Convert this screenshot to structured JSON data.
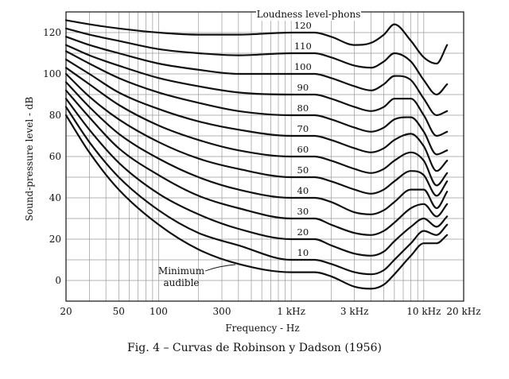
{
  "chart_data": {
    "type": "line",
    "title": "",
    "caption": "Fig. 4 – Curvas de Robinson y Dadson (1956)",
    "xlabel": "Frequency - Hz",
    "ylabel": "Sound-pressure level - dB",
    "x_scale": "log",
    "xlim": [
      20,
      20000
    ],
    "ylim": [
      -10,
      130
    ],
    "grid": true,
    "x_ticks": [
      {
        "value": 20,
        "label": "20"
      },
      {
        "value": 50,
        "label": "50"
      },
      {
        "value": 100,
        "label": "100"
      },
      {
        "value": 300,
        "label": "300"
      },
      {
        "value": 1000,
        "label": "1 kHz"
      },
      {
        "value": 3000,
        "label": "3 kHz"
      },
      {
        "value": 10000,
        "label": "10 kHz"
      },
      {
        "value": 20000,
        "label": "20 kHz"
      }
    ],
    "y_ticks": [
      {
        "value": 0,
        "label": "0"
      },
      {
        "value": 20,
        "label": "20"
      },
      {
        "value": 40,
        "label": "40"
      },
      {
        "value": 60,
        "label": "60"
      },
      {
        "value": 80,
        "label": "80"
      },
      {
        "value": 100,
        "label": "100"
      },
      {
        "value": 120,
        "label": "120"
      }
    ],
    "legend_title": "Loudness level-phons",
    "annotation": "Minimum\naudible",
    "x": [
      20,
      30,
      50,
      100,
      200,
      400,
      1000,
      1500,
      2000,
      3000,
      4000,
      5000,
      6000,
      8000,
      10000,
      12500,
      15000
    ],
    "series": [
      {
        "name": "Minimum audible",
        "values": [
          80,
          62,
          44,
          27,
          15,
          8,
          4,
          4,
          2,
          -3,
          -4,
          -2,
          3,
          12,
          18,
          18,
          22
        ]
      },
      {
        "name": "10",
        "values": [
          84,
          67,
          50,
          34,
          23,
          17,
          10,
          10,
          8,
          4,
          3,
          5,
          10,
          18,
          24,
          22,
          27
        ]
      },
      {
        "name": "20",
        "values": [
          88,
          73,
          57,
          42,
          32,
          25,
          20,
          20,
          17,
          13,
          12,
          14,
          19,
          26,
          30,
          26,
          31
        ]
      },
      {
        "name": "30",
        "values": [
          92,
          79,
          64,
          51,
          41,
          35,
          30,
          30,
          27,
          23,
          22,
          24,
          28,
          35,
          37,
          31,
          37
        ]
      },
      {
        "name": "40",
        "values": [
          96,
          84,
          71,
          59,
          50,
          44,
          40,
          40,
          38,
          33,
          32,
          34,
          38,
          44,
          44,
          35,
          43
        ]
      },
      {
        "name": "50",
        "values": [
          100,
          89,
          78,
          67,
          59,
          54,
          50,
          50,
          48,
          44,
          42,
          44,
          48,
          53,
          51,
          41,
          48
        ]
      },
      {
        "name": "60",
        "values": [
          103,
          95,
          85,
          75,
          68,
          63,
          60,
          60,
          58,
          54,
          52,
          54,
          58,
          62,
          58,
          46,
          52
        ]
      },
      {
        "name": "70",
        "values": [
          107,
          100,
          91,
          83,
          77,
          73,
          70,
          70,
          68,
          64,
          62,
          64,
          68,
          71,
          65,
          53,
          58
        ]
      },
      {
        "name": "80",
        "values": [
          111,
          105,
          98,
          91,
          86,
          82,
          80,
          80,
          78,
          74,
          72,
          74,
          78,
          79,
          72,
          61,
          63
        ]
      },
      {
        "name": "90",
        "values": [
          114,
          109,
          104,
          98,
          94,
          91,
          90,
          90,
          88,
          84,
          82,
          84,
          88,
          88,
          80,
          70,
          72
        ]
      },
      {
        "name": "100",
        "values": [
          118,
          114,
          110,
          105,
          102,
          100,
          100,
          100,
          98,
          94,
          92,
          95,
          99,
          97,
          88,
          80,
          82
        ]
      },
      {
        "name": "110",
        "values": [
          122,
          119,
          116,
          112,
          110,
          109,
          110,
          110,
          108,
          104,
          103,
          106,
          110,
          106,
          97,
          90,
          95
        ]
      },
      {
        "name": "120",
        "values": [
          126,
          124,
          122,
          120,
          119,
          119,
          120,
          120,
          118,
          114,
          115,
          119,
          124,
          116,
          108,
          105,
          114
        ]
      }
    ]
  }
}
